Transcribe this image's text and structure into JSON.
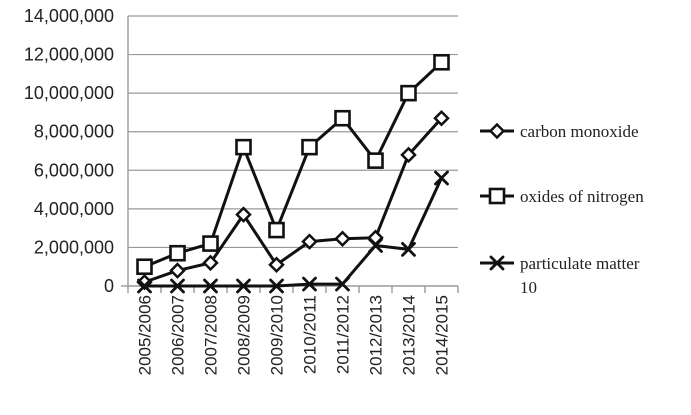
{
  "chart_data": {
    "type": "line",
    "title": "",
    "xlabel": "",
    "ylabel": "",
    "categories": [
      "2005/2006",
      "2006/2007",
      "2007/2008",
      "2008/2009",
      "2009/2010",
      "2010/2011",
      "2011/2012",
      "2012/2013",
      "2013/2014",
      "2014/2015"
    ],
    "y_ticks": [
      "0",
      "2,000,000",
      "4,000,000",
      "6,000,000",
      "8,000,000",
      "10,000,000",
      "12,000,000",
      "14,000,000"
    ],
    "ylim": [
      0,
      14000000
    ],
    "grid": "horizontal",
    "legend_position": "right",
    "series": [
      {
        "name": "carbon monoxide",
        "marker": "diamond",
        "color": "#111111",
        "values": [
          200000,
          800000,
          1200000,
          3700000,
          1100000,
          2300000,
          2450000,
          2500000,
          6800000,
          8700000
        ]
      },
      {
        "name": "oxides of nitrogen",
        "marker": "square",
        "color": "#111111",
        "values": [
          1000000,
          1700000,
          2200000,
          7200000,
          2900000,
          7200000,
          8700000,
          6500000,
          10000000,
          11600000
        ]
      },
      {
        "name": "particulate matter 10",
        "name_lines": [
          "particulate matter",
          "10"
        ],
        "marker": "x",
        "color": "#111111",
        "values": [
          0,
          0,
          0,
          0,
          0,
          100000,
          100000,
          2100000,
          1900000,
          5600000
        ]
      }
    ]
  }
}
